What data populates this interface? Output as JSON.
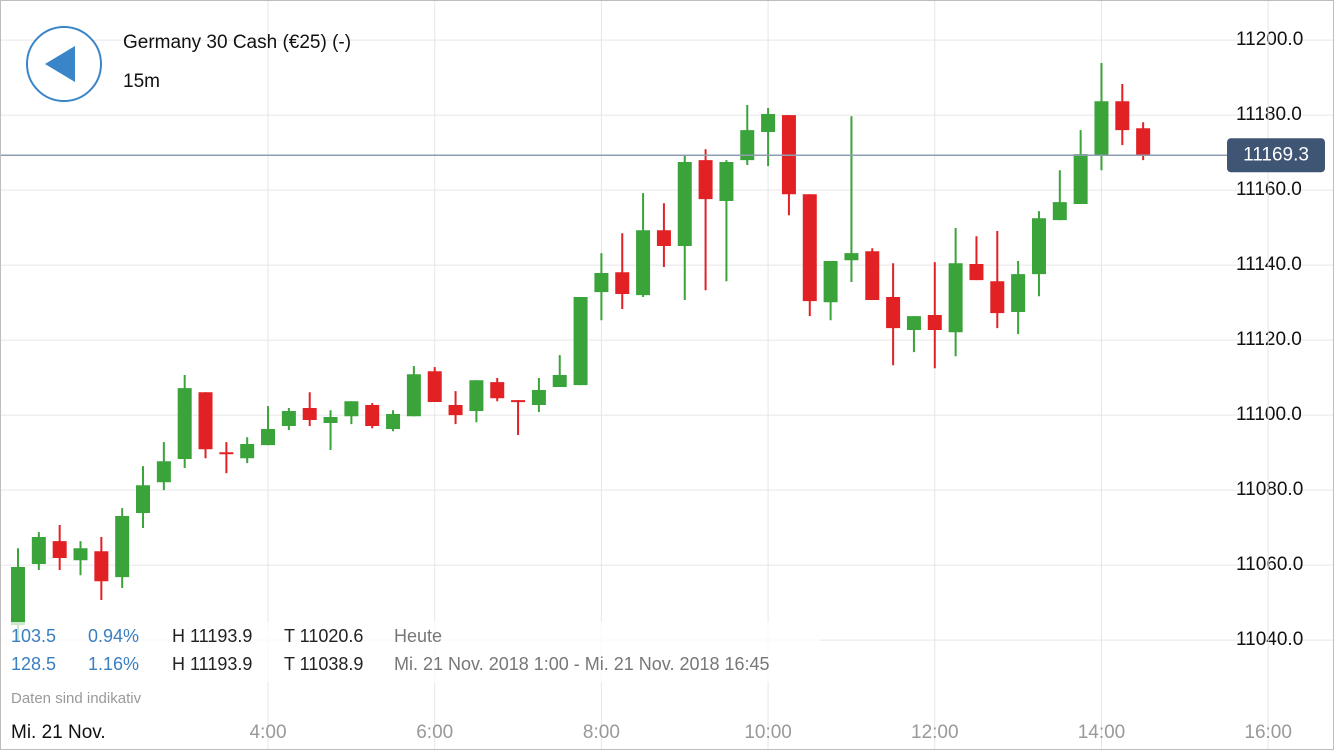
{
  "chart_data": {
    "type": "candlestick",
    "title": "Germany 30 Cash (€25) (-)",
    "subtitle": "15m",
    "date_label": "Mi. 21 Nov.",
    "note": "Daten sind indikativ",
    "stats": [
      [
        "103.5",
        "0.94%",
        "H 11193.9",
        "T 11020.6",
        "Heute"
      ],
      [
        "128.5",
        "1.16%",
        "H 11193.9",
        "T 11038.9",
        "Mi. 21 Nov. 2018 1:00 - Mi. 21 Nov. 2018 16:45"
      ]
    ],
    "x": [
      1,
      1.25,
      1.5,
      1.75,
      2,
      2.25,
      2.5,
      2.75,
      3,
      3.25,
      3.5,
      3.75,
      4,
      4.25,
      4.5,
      4.75,
      5,
      5.25,
      5.5,
      5.75,
      6,
      6.25,
      6.5,
      6.75,
      7,
      7.25,
      7.5,
      7.75,
      8,
      8.25,
      8.5,
      8.75,
      9,
      9.25,
      9.5,
      9.75,
      10,
      10.25,
      10.5,
      10.75,
      11,
      11.25,
      11.5,
      11.75,
      12,
      12.25,
      12.5,
      12.75,
      13,
      13.25,
      13.5,
      13.75,
      14,
      14.25,
      14.5
    ],
    "open": [
      11044,
      11060.3,
      11066.4,
      11061.3,
      11063.7,
      11056.8,
      11073.9,
      11082.1,
      11088.3,
      11106.1,
      11090.1,
      11088.5,
      11092,
      11097.1,
      11101.9,
      11097.9,
      11099.7,
      11102.7,
      11096.3,
      11099.7,
      11111.7,
      11102.7,
      11101.1,
      11108.8,
      11104,
      11102.7,
      11107.5,
      11108,
      11132.8,
      11138.1,
      11132,
      11149.3,
      11145.1,
      11168,
      11157.1,
      11168,
      11175.5,
      11180,
      11158.9,
      11130.1,
      11141.3,
      11143.7,
      11131.5,
      11122.7,
      11126.7,
      11122.1,
      11140.3,
      11135.7,
      11127.5,
      11137.6,
      11152,
      11156.3,
      11169.1,
      11183.7,
      11176.5
    ],
    "high": [
      11064.5,
      11068.8,
      11070.7,
      11066.4,
      11067.5,
      11075.2,
      11086.4,
      11092.8,
      11110.7,
      11106.1,
      11092.8,
      11094.1,
      11102.4,
      11101.9,
      11106.1,
      11101.3,
      11103.7,
      11103.2,
      11101.3,
      11113.1,
      11112.8,
      11106.4,
      11109.3,
      11109.9,
      11104,
      11109.9,
      11116,
      11131.5,
      11143.2,
      11148.5,
      11159.2,
      11156.5,
      11169.3,
      11170.9,
      11168,
      11182.7,
      11181.9,
      11180,
      11158.9,
      11141.1,
      11179.7,
      11144.5,
      11140.5,
      11126.4,
      11140.8,
      11149.9,
      11147.7,
      11149.1,
      11141.1,
      11154.4,
      11165.3,
      11176,
      11193.9,
      11188.3,
      11178.1
    ],
    "low": [
      11040,
      11058.7,
      11058.7,
      11057.3,
      11050.7,
      11053.9,
      11069.9,
      11080,
      11085.9,
      11088.5,
      11084.5,
      11087.2,
      11092,
      11096,
      11097.1,
      11090.7,
      11097.6,
      11096.5,
      11095.7,
      11099.7,
      11103.5,
      11097.6,
      11098.1,
      11103.7,
      11094.7,
      11100.8,
      11107.5,
      11108,
      11125.3,
      11128.3,
      11131.5,
      11139.5,
      11130.7,
      11133.3,
      11135.7,
      11166.7,
      11166.4,
      11153.3,
      11126.4,
      11125.3,
      11135.5,
      11130.7,
      11113.3,
      11116.8,
      11112.5,
      11115.7,
      11136,
      11123.2,
      11121.6,
      11131.7,
      11152,
      11156.3,
      11165.3,
      11172,
      11168
    ],
    "close": [
      11059.5,
      11067.5,
      11061.9,
      11064.5,
      11055.7,
      11073.1,
      11081.3,
      11087.7,
      11107.2,
      11090.9,
      11089.6,
      11092.3,
      11096.3,
      11101.1,
      11098.7,
      11099.5,
      11103.7,
      11097.1,
      11100.3,
      11110.9,
      11103.5,
      11100,
      11109.3,
      11104.5,
      11103.5,
      11106.7,
      11110.7,
      11131.5,
      11137.9,
      11132.3,
      11149.3,
      11145.1,
      11167.5,
      11157.6,
      11167.5,
      11176,
      11180.3,
      11158.9,
      11130.4,
      11141.1,
      11143.2,
      11130.7,
      11123.2,
      11126.4,
      11122.7,
      11140.5,
      11136,
      11127.2,
      11137.6,
      11152.5,
      11156.8,
      11169.6,
      11183.7,
      11176,
      11169.3
    ],
    "up_color": "#3aa33a",
    "down_color": "#e12124",
    "current_price": 11169.3,
    "xlim": [
      0.784,
      16.79
    ],
    "xticks": [
      {
        "value": 4,
        "label": "4:00"
      },
      {
        "value": 6,
        "label": "6:00"
      },
      {
        "value": 8,
        "label": "8:00"
      },
      {
        "value": 10,
        "label": "10:00"
      },
      {
        "value": 12,
        "label": "12:00"
      },
      {
        "value": 14,
        "label": "14:00"
      },
      {
        "value": 16,
        "label": "16:00"
      }
    ],
    "ylim": [
      11010.7,
      11210.7
    ],
    "yticks": [
      {
        "value": 11040,
        "label": "11040.0"
      },
      {
        "value": 11060,
        "label": "11060.0"
      },
      {
        "value": 11080,
        "label": "11080.0"
      },
      {
        "value": 11100,
        "label": "11100.0"
      },
      {
        "value": 11120,
        "label": "11120.0"
      },
      {
        "value": 11140,
        "label": "11140.0"
      },
      {
        "value": 11160,
        "label": "11160.0"
      },
      {
        "value": 11180,
        "label": "11180.0"
      },
      {
        "value": 11200,
        "label": "11200.0"
      }
    ],
    "grid": true
  }
}
